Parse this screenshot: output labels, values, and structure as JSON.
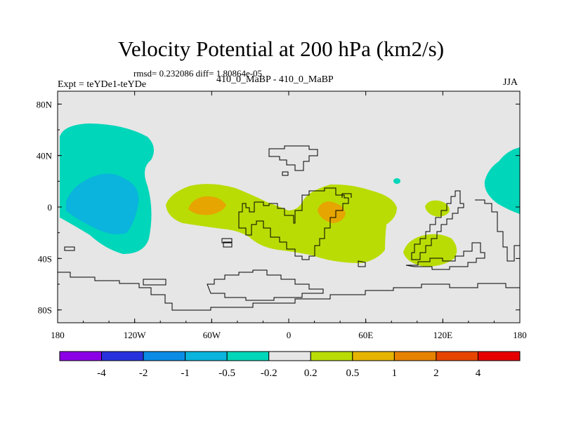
{
  "title": "Velocity Potential at 200 hPa (km2/s)",
  "stats_line": "rmsd= 0.232086 diff= 1.80864e-05",
  "expt_label": "Expt = teYDe1-teYDe",
  "runs_label": "410_0_MaBP - 410_0_MaBP",
  "season": "JJA",
  "colors": {
    "map_background": "#e6e6e6",
    "neg_0_5": "#00d6b9",
    "neg_1": "#0ab4dc",
    "pos_0_5": "#b9dc05",
    "pos_1": "#e6a500",
    "coast": "#000000"
  },
  "map_axes": {
    "lon_range": [
      -180,
      180
    ],
    "lat_range": [
      -90,
      90
    ],
    "x_ticks": [
      {
        "lon": -180,
        "label": "180"
      },
      {
        "lon": -120,
        "label": "120W"
      },
      {
        "lon": -60,
        "label": "60W"
      },
      {
        "lon": 0,
        "label": "0"
      },
      {
        "lon": 60,
        "label": "60E"
      },
      {
        "lon": 120,
        "label": "120E"
      },
      {
        "lon": 180,
        "label": "180"
      }
    ],
    "y_ticks": [
      {
        "lat": 80,
        "label": "80N"
      },
      {
        "lat": 40,
        "label": "40N"
      },
      {
        "lat": 0,
        "label": "0"
      },
      {
        "lat": -40,
        "label": "40S"
      },
      {
        "lat": -80,
        "label": "80S"
      }
    ]
  },
  "colorbar": {
    "colors": [
      "#8c00e6",
      "#2832dc",
      "#0a8ce6",
      "#0ab4dc",
      "#00d6b9",
      "#e6e6e6",
      "#b9dc05",
      "#e6b400",
      "#e68200",
      "#e64600",
      "#e60000"
    ],
    "labels": [
      "-4",
      "-2",
      "-1",
      "-0.5",
      "-0.2",
      "0.2",
      "0.5",
      "1",
      "2",
      "4"
    ]
  }
}
